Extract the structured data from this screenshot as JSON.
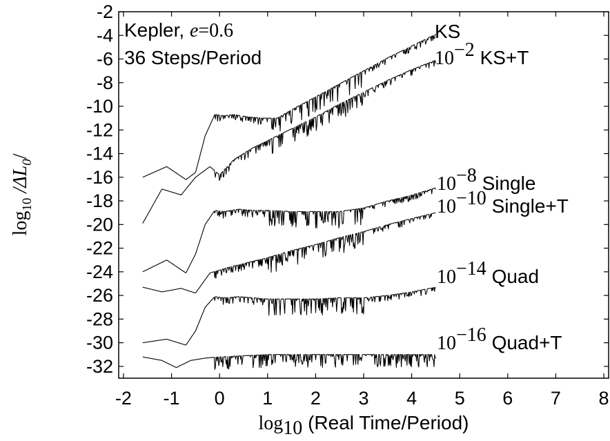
{
  "chart_data": {
    "type": "line",
    "xlabel": {
      "prefix": "log",
      "sub": "10",
      "text": " (Real Time/Period)"
    },
    "ylabel": {
      "prefix": "log",
      "sub": "10",
      "text": " /ΔL",
      "text_sub": "0",
      "suffix": "/"
    },
    "xlim": [
      -2.1,
      8.1
    ],
    "ylim": [
      -33,
      -2
    ],
    "xticks": [
      -2,
      -1,
      0,
      1,
      2,
      3,
      4,
      5,
      6,
      7,
      8
    ],
    "yticks": [
      -2,
      -4,
      -6,
      -8,
      -10,
      -12,
      -14,
      -16,
      -18,
      -20,
      -22,
      -24,
      -26,
      -28,
      -30,
      -32
    ],
    "info_box": {
      "line1_text": "Kepler, ",
      "line1_var": "e",
      "line1_eq": "=0.6",
      "line2": "36 Steps/Period"
    },
    "series": [
      {
        "label_text": "KS",
        "label_exp": "",
        "label_name": "KS",
        "x": [
          -1.6,
          -1.1,
          -0.7,
          -0.5,
          -0.3,
          -0.1,
          0.1,
          0.3,
          0.6,
          0.9,
          1.2,
          1.5,
          2.0,
          2.5,
          3.0,
          3.5,
          4.0,
          4.5
        ],
        "y": [
          -16.0,
          -15.1,
          -16.2,
          -15.6,
          -12.5,
          -10.7,
          -10.8,
          -10.7,
          -10.9,
          -11.0,
          -11.0,
          -10.3,
          -9.2,
          -8.1,
          -7.0,
          -5.9,
          -4.9,
          -3.9
        ]
      },
      {
        "label_text": "10",
        "label_exp": "−2",
        "label_name": " KS+T",
        "x": [
          -1.6,
          -1.2,
          -0.8,
          -0.5,
          -0.2,
          0.0,
          0.3,
          0.7,
          1.0,
          1.5,
          2.0,
          2.5,
          3.0,
          3.5,
          4.0,
          4.5
        ],
        "y": [
          -19.9,
          -17.0,
          -17.5,
          -16.0,
          -15.1,
          -15.8,
          -14.5,
          -13.5,
          -12.9,
          -11.9,
          -10.9,
          -9.8,
          -8.8,
          -7.8,
          -6.9,
          -6.1
        ]
      },
      {
        "label_text": "10",
        "label_exp": "−8",
        "label_name": " Single",
        "x": [
          -1.6,
          -1.1,
          -0.7,
          -0.5,
          -0.3,
          -0.1,
          0.1,
          0.4,
          0.7,
          1.0,
          1.5,
          2.0,
          2.5,
          3.0,
          3.5,
          4.0,
          4.5
        ],
        "y": [
          -24.0,
          -23.0,
          -24.1,
          -22.5,
          -20.0,
          -18.8,
          -18.9,
          -18.7,
          -18.8,
          -18.8,
          -18.9,
          -18.9,
          -18.9,
          -18.6,
          -18.0,
          -17.5,
          -16.9
        ]
      },
      {
        "label_text": "10",
        "label_exp": "−10",
        "label_name": " Single+T",
        "x": [
          -1.6,
          -1.2,
          -0.8,
          -0.5,
          -0.2,
          0.2,
          0.6,
          1.0,
          1.5,
          2.0,
          2.5,
          3.0,
          3.5,
          4.0,
          4.5
        ],
        "y": [
          -25.3,
          -25.7,
          -25.4,
          -25.8,
          -24.1,
          -23.6,
          -23.2,
          -22.8,
          -22.2,
          -21.7,
          -21.1,
          -20.6,
          -20.0,
          -19.5,
          -19.0
        ]
      },
      {
        "label_text": "10",
        "label_exp": "−14",
        "label_name": " Quad",
        "x": [
          -1.6,
          -1.1,
          -0.7,
          -0.5,
          -0.3,
          -0.1,
          0.1,
          0.4,
          0.7,
          1.0,
          1.5,
          2.0,
          2.5,
          3.0,
          3.5,
          4.0,
          4.5
        ],
        "y": [
          -30.0,
          -29.7,
          -30.2,
          -29.0,
          -27.0,
          -26.1,
          -26.2,
          -26.1,
          -26.2,
          -26.3,
          -26.3,
          -26.3,
          -26.2,
          -26.2,
          -26.0,
          -25.7,
          -25.3
        ]
      },
      {
        "label_text": "10",
        "label_exp": "−16",
        "label_name": " Quad+T",
        "x": [
          -1.6,
          -1.2,
          -0.9,
          -0.6,
          -0.3,
          0.0,
          0.5,
          1.0,
          1.5,
          2.0,
          2.5,
          3.0,
          3.5,
          4.0,
          4.5
        ],
        "y": [
          -31.2,
          -31.5,
          -32.1,
          -31.5,
          -31.3,
          -31.2,
          -31.1,
          -31.0,
          -31.0,
          -31.0,
          -31.0,
          -31.0,
          -31.0,
          -31.0,
          -31.0
        ]
      }
    ]
  }
}
